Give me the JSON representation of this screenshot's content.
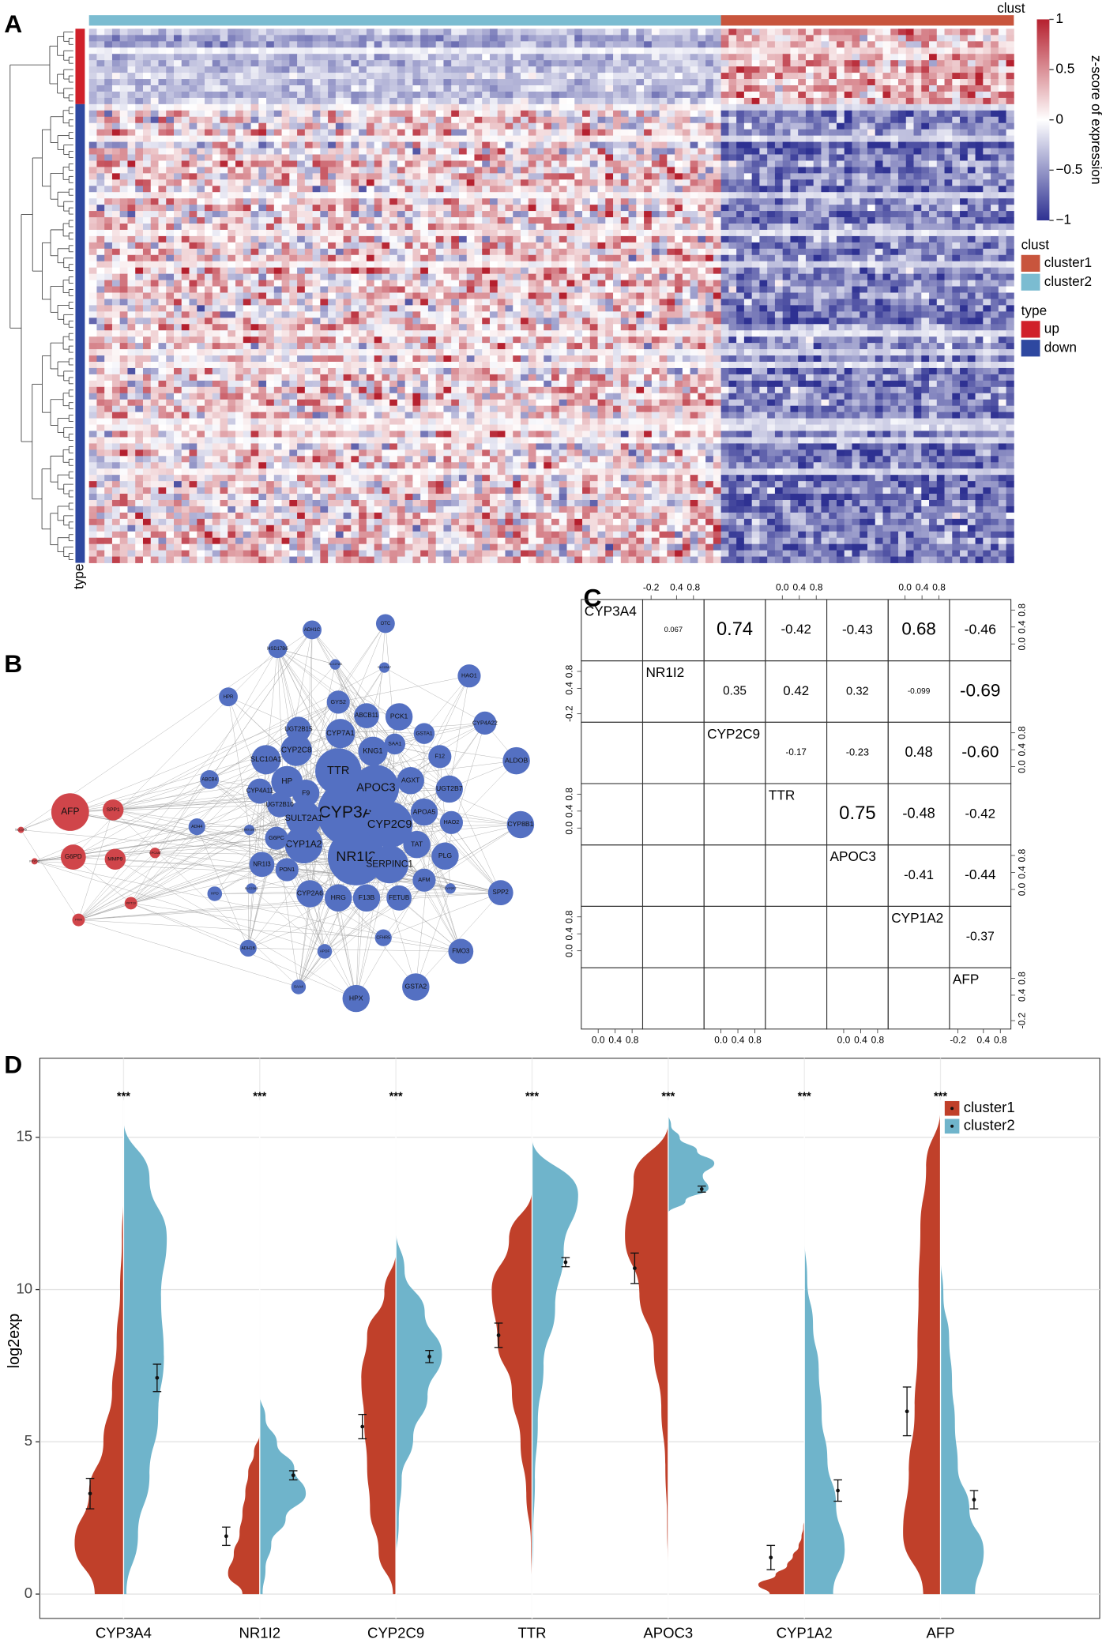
{
  "panels": [
    "A",
    "B",
    "C",
    "D"
  ],
  "heatmap": {
    "clust_label": "clust",
    "colorbar_label": "z-score of expression",
    "colorbar_lim": [
      -1,
      1
    ],
    "colorbar_ticks": [
      1,
      0.5,
      0,
      {
        "value": -0.5,
        "label": "−0.5"
      },
      {
        "value": -1,
        "label": "−1"
      }
    ],
    "legend": {
      "clust_title": "clust",
      "clust": [
        {
          "name": "cluster1",
          "color": "#c8553d"
        },
        {
          "name": "cluster2",
          "color": "#7bbcd1"
        }
      ],
      "type_title": "type",
      "type": [
        {
          "name": "up",
          "color": "#d0202a"
        },
        {
          "name": "down",
          "color": "#2e48a0"
        }
      ]
    },
    "type_axis_label": "type"
  },
  "network": {
    "colors": {
      "up": "#d0454a",
      "down": "#5470c2"
    },
    "nodes": [
      {
        "label": "AFP",
        "group": "up"
      },
      {
        "label": "G6PD",
        "group": "up"
      },
      {
        "label": "SPP1",
        "group": "up"
      },
      {
        "label": "MMP9",
        "group": "up"
      },
      {
        "label": "EPCAM",
        "group": "up"
      },
      {
        "label": "KRT19",
        "group": "up"
      },
      {
        "label": "PKM",
        "group": "up"
      },
      {
        "label": "FXYD2",
        "group": "up"
      },
      {
        "label": "SLC1A5",
        "group": "up"
      },
      {
        "label": "CYP3A4",
        "group": "down"
      },
      {
        "label": "NR1I2",
        "group": "down"
      },
      {
        "label": "TTR",
        "group": "down"
      },
      {
        "label": "APOC3",
        "group": "down"
      },
      {
        "label": "CYP2C9",
        "group": "down"
      },
      {
        "label": "CYP1A2",
        "group": "down"
      },
      {
        "label": "SULT2A1",
        "group": "down"
      },
      {
        "label": "SERPINC1",
        "group": "down"
      },
      {
        "label": "HP",
        "group": "down"
      },
      {
        "label": "F9",
        "group": "down"
      },
      {
        "label": "CYP2C8",
        "group": "down"
      },
      {
        "label": "CYP7A1",
        "group": "down"
      },
      {
        "label": "UGT2B15",
        "group": "down"
      },
      {
        "label": "KNG1",
        "group": "down"
      },
      {
        "label": "AGXT",
        "group": "down"
      },
      {
        "label": "APOA5",
        "group": "down"
      },
      {
        "label": "TAT",
        "group": "down"
      },
      {
        "label": "PLG",
        "group": "down"
      },
      {
        "label": "AFM",
        "group": "down"
      },
      {
        "label": "UGT2B7",
        "group": "down"
      },
      {
        "label": "HAO2",
        "group": "down"
      },
      {
        "label": "F12",
        "group": "down"
      },
      {
        "label": "GSTA1",
        "group": "down"
      },
      {
        "label": "PCK1",
        "group": "down"
      },
      {
        "label": "ABCB11",
        "group": "down"
      },
      {
        "label": "GYS2",
        "group": "down"
      },
      {
        "label": "SAA1",
        "group": "down"
      },
      {
        "label": "SLC10A1",
        "group": "down"
      },
      {
        "label": "CYP4A11",
        "group": "down"
      },
      {
        "label": "UGT2B10",
        "group": "down"
      },
      {
        "label": "G6PC",
        "group": "down"
      },
      {
        "label": "NR1I3",
        "group": "down"
      },
      {
        "label": "PON1",
        "group": "down"
      },
      {
        "label": "CYP2A6",
        "group": "down"
      },
      {
        "label": "HRG",
        "group": "down"
      },
      {
        "label": "F13B",
        "group": "down"
      },
      {
        "label": "FETUB",
        "group": "down"
      },
      {
        "label": "ALDOB",
        "group": "down"
      },
      {
        "label": "CYP8B1",
        "group": "down"
      },
      {
        "label": "SPP2",
        "group": "down"
      },
      {
        "label": "FMO3",
        "group": "down"
      },
      {
        "label": "GSTA2",
        "group": "down"
      },
      {
        "label": "HPX",
        "group": "down"
      },
      {
        "label": "HAO1",
        "group": "down"
      },
      {
        "label": "OTC",
        "group": "down"
      },
      {
        "label": "ADH1C",
        "group": "down"
      },
      {
        "label": "HSD17B6",
        "group": "down"
      },
      {
        "label": "CYP4A22",
        "group": "down"
      },
      {
        "label": "HPR",
        "group": "down"
      },
      {
        "label": "ABCB4",
        "group": "down"
      },
      {
        "label": "ADH4",
        "group": "down"
      },
      {
        "label": "HPD",
        "group": "down"
      },
      {
        "label": "ADH1B",
        "group": "down"
      },
      {
        "label": "SAA4",
        "group": "down"
      },
      {
        "label": "APOF",
        "group": "down"
      },
      {
        "label": "CFHR5",
        "group": "down"
      },
      {
        "label": "SLC27A5",
        "group": "down"
      },
      {
        "label": "SLC22A7",
        "group": "down"
      },
      {
        "label": "SLC22A1",
        "group": "down"
      },
      {
        "label": "CYP2F2",
        "group": "down"
      },
      {
        "label": "HSD11B1",
        "group": "down"
      }
    ]
  },
  "correlation": {
    "variables": [
      "CYP3A4",
      "NR1I2",
      "CYP2C9",
      "TTR",
      "APOC3",
      "CYP1A2",
      "AFP"
    ],
    "coefficients": [
      [
        0.067,
        0.74,
        -0.42,
        -0.43,
        0.68,
        -0.46
      ],
      [
        0.35,
        0.42,
        0.32,
        -0.099,
        -0.69
      ],
      [
        -0.17,
        -0.23,
        0.48,
        {
          "value": -0.6,
          "label": "-0.60"
        }
      ],
      [
        0.75,
        -0.48,
        -0.42
      ],
      [
        -0.41,
        -0.44
      ],
      [
        -0.37
      ]
    ],
    "tick_lim": [
      -0.3,
      0.95
    ],
    "ticks_a": [
      {
        "value": 0,
        "label": "0.0"
      },
      0.4,
      0.8
    ],
    "ticks_b": [
      -0.2,
      0.4,
      0.8
    ]
  },
  "chart_data": {
    "type": "violin",
    "categories": [
      "CYP3A4",
      "NR1I2",
      "CYP2C9",
      "TTR",
      "APOC3",
      "CYP1A2",
      "AFP"
    ],
    "y_label": "log2exp",
    "ylim": [
      -0.8,
      17.6
    ],
    "yticks": [
      0,
      5,
      10,
      15
    ],
    "grid": true,
    "legend": "top-right",
    "annotations": [
      "***",
      "***",
      "***",
      "***",
      "***",
      "***",
      "***"
    ],
    "series": [
      {
        "name": "cluster1",
        "color": "#c0402a",
        "values": [
          3.3,
          1.9,
          5.5,
          8.5,
          10.7,
          1.2,
          6.0
        ],
        "errors": [
          0.5,
          0.3,
          0.4,
          0.4,
          0.5,
          0.4,
          0.8
        ],
        "min": [
          0,
          0,
          0,
          0,
          0.5,
          0,
          0
        ],
        "max": [
          13.3,
          5.3,
          11.3,
          13.3,
          15.5,
          2.5,
          16
        ],
        "density": [
          [
            0.5,
            0.85,
            0.6,
            0.35,
            0.2,
            0.12,
            0.06,
            0.03,
            0
          ],
          [
            0.3,
            0.55,
            0.45,
            0.35,
            0.3,
            0.25,
            0.2,
            0.1,
            0
          ],
          [
            0.05,
            0.3,
            0.45,
            0.5,
            0.55,
            0.6,
            0.5,
            0.2,
            0
          ],
          [
            0,
            0.02,
            0.1,
            0.2,
            0.35,
            0.6,
            0.7,
            0.4,
            0
          ],
          [
            0,
            0.02,
            0.05,
            0.12,
            0.25,
            0.5,
            0.75,
            0.6,
            0
          ],
          [
            0.6,
            0.8,
            0.5,
            0.3,
            0.2,
            0.1,
            0.05,
            0.02,
            0
          ],
          [
            0.3,
            0.65,
            0.55,
            0.45,
            0.4,
            0.38,
            0.35,
            0.25,
            0
          ]
        ]
      },
      {
        "name": "cluster2",
        "color": "#6fb4cb",
        "values": [
          7.1,
          3.9,
          7.8,
          10.9,
          13.3,
          3.4,
          3.1
        ],
        "errors": [
          0.45,
          0.15,
          0.2,
          0.15,
          0.1,
          0.35,
          0.3
        ],
        "min": [
          0,
          0,
          1,
          0,
          12.5,
          0,
          0
        ],
        "max": [
          15.6,
          6.6,
          12,
          15,
          15.8,
          11.8,
          11.2
        ],
        "density": [
          [
            0.05,
            0.25,
            0.45,
            0.6,
            0.7,
            0.65,
            0.75,
            0.45,
            0
          ],
          [
            0.05,
            0.1,
            0.2,
            0.45,
            0.8,
            0.6,
            0.3,
            0.1,
            0
          ],
          [
            0,
            0.05,
            0.1,
            0.3,
            0.55,
            0.8,
            0.5,
            0.15,
            0
          ],
          [
            0,
            0.02,
            0.05,
            0.1,
            0.2,
            0.4,
            0.55,
            0.8,
            0
          ],
          [
            0,
            0.3,
            0.7,
            0.6,
            0.8,
            0.5,
            0.2,
            0.05,
            0
          ],
          [
            0.5,
            0.7,
            0.55,
            0.4,
            0.3,
            0.25,
            0.15,
            0.05,
            0
          ],
          [
            0.6,
            0.75,
            0.5,
            0.3,
            0.25,
            0.2,
            0.15,
            0.05,
            0
          ]
        ]
      }
    ]
  }
}
